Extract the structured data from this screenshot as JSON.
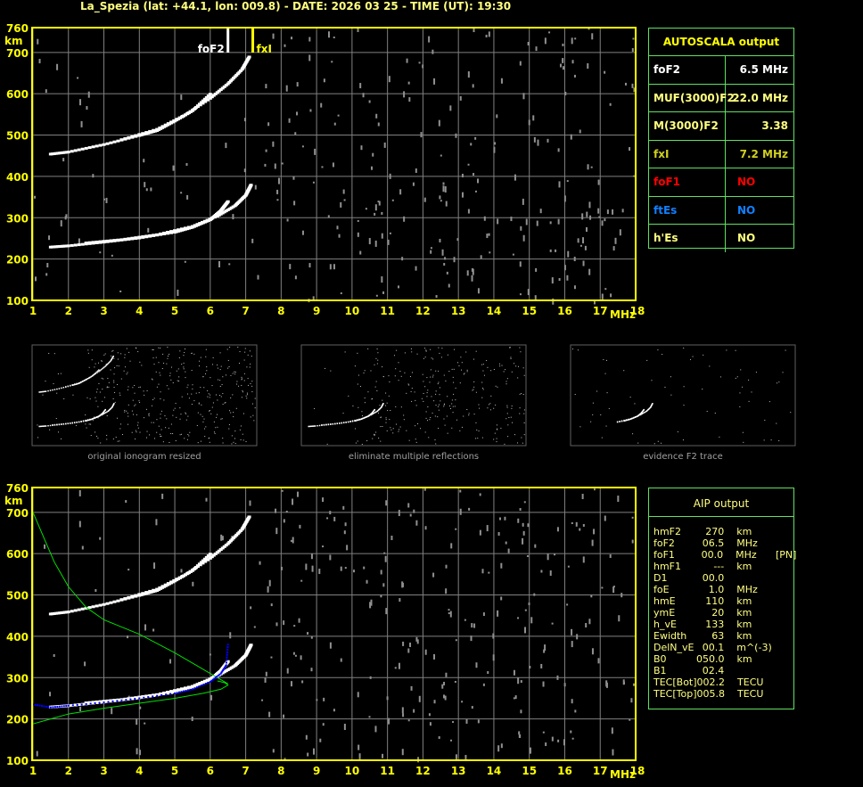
{
  "title": "La_Spezia (lat: +44.1, lon: 009.8) - DATE: 2026 03 25 - TIME (UT): 19:30",
  "colors": {
    "axis": "#ffff00",
    "grid": "#808080",
    "trace": "#ffffff",
    "fxl": "#ffff00",
    "profile": "#00e000",
    "aip_trace": "#0000ff",
    "table_border": "#60e060"
  },
  "autoscala": {
    "header": "AUTOSCALA output",
    "rows": [
      {
        "key": "foF2",
        "value": "6.5 MHz",
        "color": "#ffffff"
      },
      {
        "key": "MUF(3000)F2",
        "value": "22.0 MHz",
        "color": "#ffff80"
      },
      {
        "key": "M(3000)F2",
        "value": "3.38",
        "color": "#ffff80"
      },
      {
        "key": "fxI",
        "value": "7.2 MHz",
        "color": "#d0d020"
      },
      {
        "key": "foF1",
        "value": "NO",
        "color": "#ff0000"
      },
      {
        "key": "ftEs",
        "value": "NO",
        "color": "#1080ff"
      },
      {
        "key": "h'Es",
        "value": "NO",
        "color": "#ffff80"
      }
    ]
  },
  "aip": {
    "header": "AIP output",
    "rows": [
      [
        "hmF2",
        "270",
        "km",
        ""
      ],
      [
        "foF2",
        "06.5",
        "MHz",
        ""
      ],
      [
        "foF1",
        "00.0",
        "MHz",
        "[PN]"
      ],
      [
        "hmF1",
        "---",
        "km",
        ""
      ],
      [
        "D1",
        "00.0",
        "",
        ""
      ],
      [
        "foE",
        "1.0",
        "MHz",
        ""
      ],
      [
        "hmE",
        "110",
        "km",
        ""
      ],
      [
        "ymE",
        "20",
        "km",
        ""
      ],
      [
        "h_vE",
        "133",
        "km",
        ""
      ],
      [
        "Ewidth",
        "63",
        "km",
        ""
      ],
      [
        "DelN_vE",
        "00.1",
        "m^(-3)",
        ""
      ],
      [
        "B0",
        "050.0",
        "km",
        ""
      ],
      [
        "B1",
        "02.4",
        "",
        ""
      ],
      [
        "TEC[Bot]",
        "002.2",
        "TECU",
        ""
      ],
      [
        "TEC[Top]",
        "005.8",
        "TECU",
        ""
      ]
    ]
  },
  "thumbnails": [
    "original ionogram resized",
    "eliminate multiple reflections",
    "evidence F2 trace"
  ],
  "chart_data": [
    {
      "type": "scatter",
      "name_label": "ionogram",
      "xlabel": "MHz",
      "ylabel": "km",
      "xlim": [
        1,
        18
      ],
      "ylim": [
        100,
        760
      ],
      "grid": true,
      "xticks": [
        1,
        2,
        3,
        4,
        5,
        6,
        7,
        8,
        9,
        10,
        11,
        12,
        13,
        14,
        15,
        16,
        17,
        18
      ],
      "yticks": [
        100,
        200,
        300,
        400,
        500,
        600,
        700,
        760
      ],
      "markers": [
        {
          "label": "foF2",
          "x": 6.5
        },
        {
          "label": "fxI",
          "x": 7.2
        }
      ],
      "traces": [
        {
          "points": [
            [
              1.5,
              230
            ],
            [
              2,
              233
            ],
            [
              3,
              242
            ],
            [
              4,
              252
            ],
            [
              5,
              266
            ],
            [
              5.5,
              278
            ],
            [
              6,
              296
            ],
            [
              6.3,
              318
            ],
            [
              6.5,
              340
            ]
          ]
        },
        {
          "points": [
            [
              2.5,
              240
            ],
            [
              3.5,
              248
            ],
            [
              4.5,
              260
            ],
            [
              5.5,
              280
            ],
            [
              6.2,
              305
            ],
            [
              6.7,
              330
            ],
            [
              7.0,
              355
            ],
            [
              7.15,
              380
            ]
          ]
        },
        {
          "points": [
            [
              1.5,
              455
            ],
            [
              2,
              460
            ],
            [
              3,
              478
            ],
            [
              4,
              500
            ],
            [
              4.5,
              512
            ],
            [
              5,
              535
            ],
            [
              5.5,
              560
            ],
            [
              6,
              600
            ]
          ]
        },
        {
          "points": [
            [
              3.5,
              490
            ],
            [
              4.5,
              515
            ],
            [
              5.3,
              550
            ],
            [
              6.0,
              590
            ],
            [
              6.5,
              625
            ],
            [
              6.9,
              660
            ],
            [
              7.1,
              690
            ]
          ]
        }
      ]
    },
    {
      "type": "line",
      "name_label": "aip",
      "xlabel": "MHz",
      "ylabel": "km",
      "xlim": [
        1,
        18
      ],
      "ylim": [
        100,
        760
      ],
      "grid": true,
      "xticks": [
        1,
        2,
        3,
        4,
        5,
        6,
        7,
        8,
        9,
        10,
        11,
        12,
        13,
        14,
        15,
        16,
        17,
        18
      ],
      "yticks": [
        100,
        200,
        300,
        400,
        500,
        600,
        700,
        760
      ],
      "traces": [
        {
          "points": [
            [
              1.5,
              230
            ],
            [
              2,
              233
            ],
            [
              3,
              242
            ],
            [
              4,
              252
            ],
            [
              5,
              266
            ],
            [
              5.5,
              278
            ],
            [
              6,
              296
            ],
            [
              6.3,
              318
            ],
            [
              6.5,
              340
            ]
          ]
        },
        {
          "points": [
            [
              2.5,
              240
            ],
            [
              3.5,
              248
            ],
            [
              4.5,
              260
            ],
            [
              5.5,
              280
            ],
            [
              6.2,
              305
            ],
            [
              6.7,
              330
            ],
            [
              7.0,
              355
            ],
            [
              7.15,
              380
            ]
          ]
        },
        {
          "points": [
            [
              1.5,
              455
            ],
            [
              2,
              460
            ],
            [
              3,
              478
            ],
            [
              4,
              500
            ],
            [
              4.5,
              512
            ],
            [
              5,
              535
            ],
            [
              5.5,
              560
            ],
            [
              6,
              600
            ]
          ]
        },
        {
          "points": [
            [
              3.5,
              490
            ],
            [
              4.5,
              515
            ],
            [
              5.3,
              550
            ],
            [
              6.0,
              590
            ],
            [
              6.5,
              625
            ],
            [
              6.9,
              660
            ],
            [
              7.1,
              690
            ]
          ]
        }
      ],
      "aip_trace": [
        [
          1,
          235
        ],
        [
          1.5,
          228
        ],
        [
          2,
          232
        ],
        [
          3,
          240
        ],
        [
          4,
          250
        ],
        [
          5,
          262
        ],
        [
          5.5,
          272
        ],
        [
          6,
          290
        ],
        [
          6.3,
          310
        ],
        [
          6.45,
          330
        ],
        [
          6.5,
          380
        ]
      ],
      "profiles": [
        {
          "points": [
            [
              1,
              700
            ],
            [
              1.3,
              640
            ],
            [
              1.6,
              580
            ],
            [
              2,
              520
            ],
            [
              2.5,
              470
            ],
            [
              3,
              440
            ],
            [
              4,
              405
            ],
            [
              5,
              360
            ],
            [
              5.6,
              330
            ],
            [
              6.2,
              300
            ],
            [
              6.5,
              285
            ]
          ]
        },
        {
          "points": [
            [
              1,
              188
            ],
            [
              1.5,
              200
            ],
            [
              2,
              212
            ],
            [
              3,
              226
            ],
            [
              4,
              238
            ],
            [
              5,
              250
            ],
            [
              5.8,
              262
            ],
            [
              6.3,
              272
            ],
            [
              6.5,
              282
            ],
            [
              6.4,
              288
            ],
            [
              6.2,
              292
            ]
          ]
        }
      ]
    }
  ]
}
